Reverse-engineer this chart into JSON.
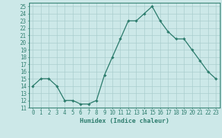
{
  "x": [
    0,
    1,
    2,
    3,
    4,
    5,
    6,
    7,
    8,
    9,
    10,
    11,
    12,
    13,
    14,
    15,
    16,
    17,
    18,
    19,
    20,
    21,
    22,
    23
  ],
  "y": [
    14,
    15,
    15,
    14,
    12,
    12,
    11.5,
    11.5,
    12,
    15.5,
    18,
    20.5,
    23,
    23,
    24,
    25,
    23,
    21.5,
    20.5,
    20.5,
    19,
    17.5,
    16,
    15
  ],
  "line_color": "#2e7d6e",
  "marker": "D",
  "marker_size": 2,
  "line_width": 1.0,
  "xlabel": "Humidex (Indice chaleur)",
  "xlim": [
    -0.5,
    23.5
  ],
  "ylim": [
    11,
    25.5
  ],
  "yticks": [
    11,
    12,
    13,
    14,
    15,
    16,
    17,
    18,
    19,
    20,
    21,
    22,
    23,
    24,
    25
  ],
  "xticks": [
    0,
    1,
    2,
    3,
    4,
    5,
    6,
    7,
    8,
    9,
    10,
    11,
    12,
    13,
    14,
    15,
    16,
    17,
    18,
    19,
    20,
    21,
    22,
    23
  ],
  "background_color": "#cce8e8",
  "grid_color": "#a8cccc",
  "font_color": "#2e7d6e",
  "xlabel_fontsize": 6.5,
  "tick_fontsize": 5.5
}
